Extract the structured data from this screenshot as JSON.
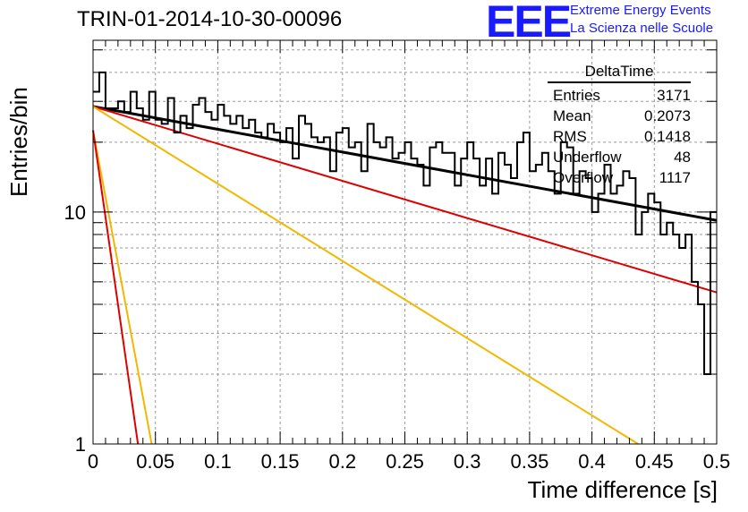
{
  "header": {
    "title": "TRIN-01-2014-10-30-00096",
    "logo": "EEE",
    "logo_line1": "Extreme Energy Events",
    "logo_line2": "La Scienza nelle Scuole"
  },
  "stats_box": {
    "name": "DeltaTime",
    "rows": [
      {
        "label": "Entries",
        "value": "3171"
      },
      {
        "label": "Mean",
        "value": "0.2073"
      },
      {
        "label": "RMS",
        "value": "0.1418"
      },
      {
        "label": "Underflow",
        "value": "48"
      },
      {
        "label": "Overflow",
        "value": "1117"
      }
    ]
  },
  "chart_data": {
    "type": "line",
    "title": "TRIN-01-2014-10-30-00096",
    "xlabel": "Time difference [s]",
    "ylabel": "Entries/bin",
    "xlim": [
      0,
      0.5
    ],
    "ylim": [
      1,
      55
    ],
    "yscale": "log",
    "grid": true,
    "x_ticks": [
      "0",
      "0.05",
      "0.1",
      "0.15",
      "0.2",
      "0.25",
      "0.3",
      "0.35",
      "0.4",
      "0.45",
      "0.5"
    ],
    "y_ticks": [
      "1",
      "10"
    ],
    "histogram": {
      "name": "DeltaTime",
      "bin_width": 0.005,
      "color": "#000000",
      "values": [
        33,
        40,
        28,
        28,
        30,
        27,
        33,
        28,
        25,
        33,
        25,
        24,
        31,
        22,
        26,
        23,
        29,
        31,
        27,
        25,
        29,
        26,
        24,
        26,
        23,
        25,
        22,
        21,
        24,
        22,
        20,
        23,
        17,
        26,
        24,
        21,
        20,
        21,
        15,
        22,
        23,
        19,
        20,
        15,
        24,
        20,
        19,
        21,
        17,
        18,
        20,
        17,
        16,
        13,
        19,
        20,
        18,
        18,
        13,
        17,
        20,
        17,
        13,
        17,
        12,
        18,
        16,
        14,
        20,
        22,
        15,
        16,
        18,
        15,
        12,
        20,
        19,
        12,
        15,
        14,
        10,
        12,
        16,
        12,
        13,
        15,
        14,
        8,
        10,
        12,
        11,
        8,
        9,
        8,
        7,
        8,
        5,
        4,
        2,
        10
      ]
    },
    "fits": [
      {
        "color": "#000000",
        "x": [
          0,
          0.5
        ],
        "y": [
          28.5,
          9.2
        ]
      },
      {
        "color": "#dd0000",
        "x": [
          0,
          0.5
        ],
        "y": [
          28.5,
          4.5
        ]
      },
      {
        "color": "#f0b800",
        "x": [
          0,
          0.437
        ],
        "y": [
          28.5,
          1
        ]
      },
      {
        "color": "#f0b800",
        "x": [
          0,
          0.047
        ],
        "y": [
          22.5,
          1
        ]
      },
      {
        "color": "#dd0000",
        "x": [
          0,
          0.036
        ],
        "y": [
          22.5,
          1
        ]
      }
    ]
  },
  "axes": {
    "xlabel": "Time difference [s]",
    "ylabel": "Entries/bin"
  }
}
